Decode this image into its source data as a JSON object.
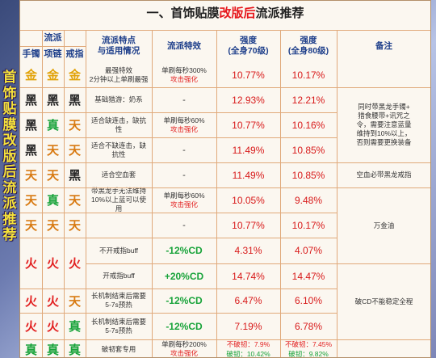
{
  "sidebar_title": [
    "首",
    "饰",
    "贴",
    "膜",
    "改",
    "版",
    "后",
    "流",
    "派",
    "推",
    "荐"
  ],
  "title": {
    "prefix": "一、首饰贴膜",
    "highlight": "改版后",
    "suffix": "流派推荐"
  },
  "headers": {
    "school": "流派",
    "bracelet": "手镯",
    "necklace": "项链",
    "ring": "戒指",
    "features": "流派特点\n与适用情况",
    "effect": "流派特效",
    "str70": "强度\n(全身70级)",
    "str80": "强度\n(全身80级)",
    "notes": "备注"
  },
  "rows": [
    {
      "b": "金",
      "n": "金",
      "r": "金",
      "feature": "最强特效\n2分钟以上单刷最强",
      "effect": {
        "t": "单刷每秒300%",
        "r": "攻击强化"
      },
      "s70": "10.77%",
      "s80": "10.17%"
    },
    {
      "b": "黑",
      "n": "黑",
      "r": "黑",
      "feature": "基础猎游：奶系",
      "effect": "-",
      "s70": "12.93%",
      "s80": "12.21%"
    },
    {
      "b": "黑",
      "n": "真",
      "r": "天",
      "feature": "适合缺连击，缺抗\n性",
      "effect": {
        "t": "单刷每秒60%",
        "r": "攻击强化"
      },
      "s70": "10.77%",
      "s80": "10.16%"
    },
    {
      "b": "黑",
      "n": "天",
      "r": "天",
      "feature": "适合不缺连击，缺\n抗性",
      "effect": "-",
      "s70": "11.49%",
      "s80": "10.85%"
    },
    {
      "b": "天",
      "n": "天",
      "r": "黑",
      "feature": "适合空血套",
      "effect": "-",
      "s70": "11.49%",
      "s80": "10.85%"
    },
    {
      "b": "天",
      "n": "真",
      "r": "天",
      "feature": "带黑龙手无法维持\n10%以上蓝可以使\n用",
      "effect": {
        "t": "单刷每秒60%",
        "r": "攻击强化"
      },
      "s70": "10.05%",
      "s80": "9.48%"
    },
    {
      "b": "天",
      "n": "天",
      "r": "天",
      "feature": "",
      "effect": "-",
      "s70": "10.77%",
      "s80": "10.17%"
    },
    {
      "b": "火",
      "n": "火",
      "r": "火",
      "feature": "不开戒指buff",
      "effect": "-12%CD",
      "s70": "4.31%",
      "s80": "4.07%"
    },
    {
      "b": "",
      "n": "",
      "r": "",
      "feature": "开戒指buff",
      "effect": "+20%CD",
      "s70": "14.74%",
      "s80": "14.47%"
    },
    {
      "b": "火",
      "n": "火",
      "r": "天",
      "feature": "长机制结束后需要\n5-7s预热",
      "effect": "-12%CD",
      "s70": "6.47%",
      "s80": "6.10%"
    },
    {
      "b": "火",
      "n": "火",
      "r": "真",
      "feature": "长机制结束后需要\n5-7s预热",
      "effect": "-12%CD",
      "s70": "7.19%",
      "s80": "6.78%"
    },
    {
      "b": "真",
      "n": "真",
      "r": "真",
      "feature": "破韧套专用",
      "effect": {
        "t": "单刷每秒200%",
        "r": "攻击强化"
      },
      "s70": {
        "a": "不破韧：",
        "av": "7.9%",
        "b": "破韧：",
        "bv": "10.42%"
      },
      "s80": {
        "a": "不破韧：",
        "av": "7.45%",
        "b": "破韧：",
        "bv": "9.82%"
      }
    }
  ],
  "notes": {
    "n1": "同时带黑龙手镯+\n猎食腰带+讯咒之\n令，需要注意蓝量\n维持到10%以上，\n否则需要更换装备",
    "n2": "空血必带黑龙戒指",
    "n3": "万金油",
    "n4": "破CD不能稳定全程"
  }
}
